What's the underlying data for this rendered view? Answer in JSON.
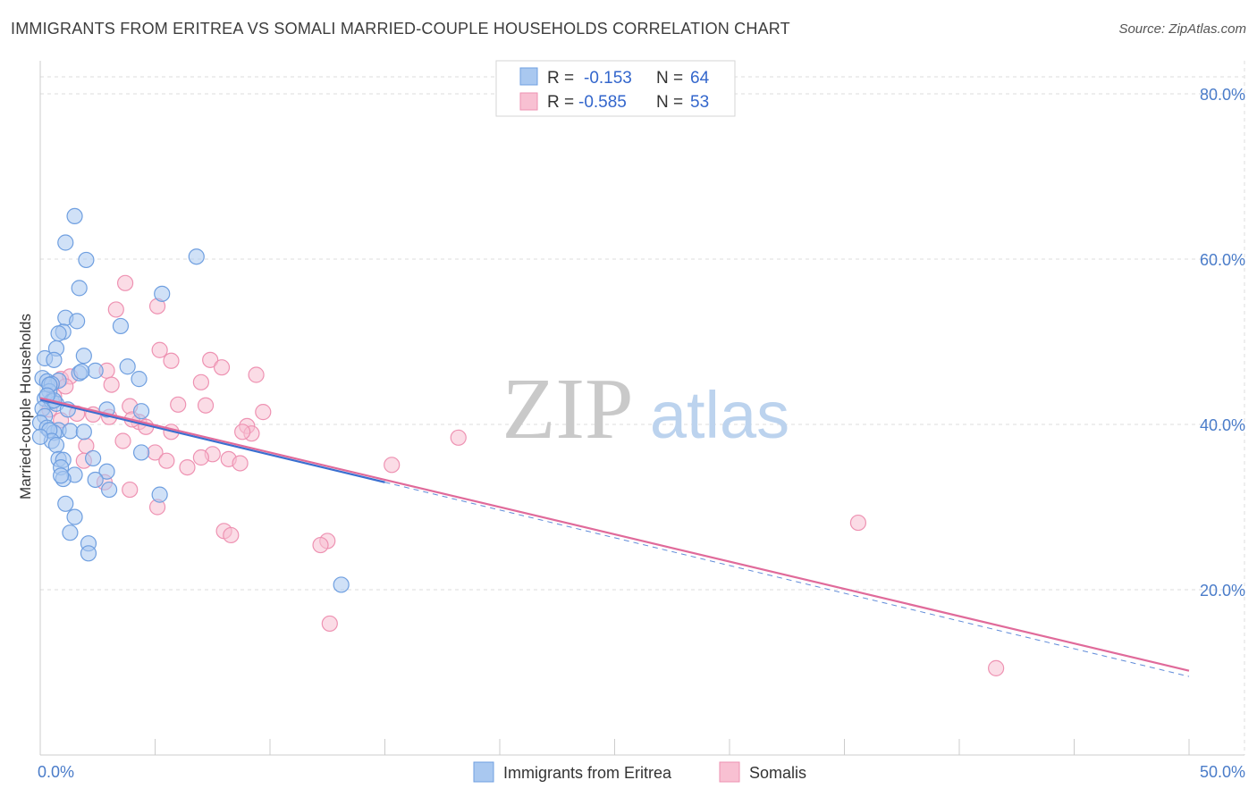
{
  "header": {
    "title": "IMMIGRANTS FROM ERITREA VS SOMALI MARRIED-COUPLE HOUSEHOLDS CORRELATION CHART",
    "source": "Source: ZipAtlas.com"
  },
  "watermark": {
    "zip": "ZIP",
    "atlas": "atlas"
  },
  "legend": {
    "r_label": "R =",
    "n_label": "N =",
    "entries": [
      {
        "r": "-0.153",
        "n": "64"
      },
      {
        "r": "-0.585",
        "n": "53"
      }
    ]
  },
  "chart_data": {
    "type": "scatter",
    "title": "IMMIGRANTS FROM ERITREA VS SOMALI MARRIED-COUPLE HOUSEHOLDS CORRELATION CHART",
    "xlabel": "",
    "ylabel": "Married-couple Households",
    "xlim": [
      0,
      50
    ],
    "ylim": [
      0,
      84
    ],
    "x_tick_labels": [
      {
        "value": 0,
        "label": "0.0%"
      },
      {
        "value": 50,
        "label": "50.0%"
      }
    ],
    "y_tick_labels": [
      {
        "value": 20,
        "label": "20.0%"
      },
      {
        "value": 40,
        "label": "40.0%"
      },
      {
        "value": 60,
        "label": "60.0%"
      },
      {
        "value": 80,
        "label": "80.0%"
      }
    ],
    "grid": true,
    "legend_position": "top-center",
    "colors": {
      "eritrea_fill": "#a9c8f0",
      "eritrea_stroke": "#6f9fe0",
      "eritrea_line": "#3a6fd0",
      "somali_fill": "#f8c0d2",
      "somali_stroke": "#ee92b2",
      "somali_line": "#e06a9a",
      "grid": "#dddddd",
      "axis": "#cccccc",
      "watermark_zip": "#c9c9c9",
      "watermark_atlas": "#bcd3ee"
    },
    "series": [
      {
        "name": "Immigrants from Eritrea",
        "trend": {
          "x": [
            0,
            15
          ],
          "y": [
            43.0,
            33.0
          ],
          "dashed_extension_to_x": 50,
          "dashed_end_y": 9.5
        },
        "points": [
          [
            1.5,
            65.2
          ],
          [
            1.1,
            62.0
          ],
          [
            2.0,
            59.9
          ],
          [
            6.8,
            60.3
          ],
          [
            1.7,
            56.5
          ],
          [
            5.3,
            55.8
          ],
          [
            1.1,
            52.9
          ],
          [
            1.6,
            52.5
          ],
          [
            3.5,
            51.9
          ],
          [
            1.0,
            51.2
          ],
          [
            0.8,
            51.0
          ],
          [
            0.7,
            49.2
          ],
          [
            1.9,
            48.3
          ],
          [
            0.2,
            48.0
          ],
          [
            0.6,
            47.8
          ],
          [
            3.8,
            47.0
          ],
          [
            2.4,
            46.5
          ],
          [
            1.7,
            46.2
          ],
          [
            0.1,
            45.6
          ],
          [
            0.3,
            45.2
          ],
          [
            4.3,
            45.5
          ],
          [
            0.8,
            45.3
          ],
          [
            0.5,
            44.9
          ],
          [
            0.4,
            44.0
          ],
          [
            0.2,
            43.1
          ],
          [
            0.5,
            42.8
          ],
          [
            0.7,
            42.5
          ],
          [
            0.1,
            41.9
          ],
          [
            1.2,
            41.8
          ],
          [
            2.9,
            41.8
          ],
          [
            4.4,
            41.6
          ],
          [
            0.2,
            41.0
          ],
          [
            0.0,
            40.2
          ],
          [
            0.3,
            39.6
          ],
          [
            0.8,
            39.3
          ],
          [
            1.3,
            39.2
          ],
          [
            1.9,
            39.1
          ],
          [
            0.6,
            39.0
          ],
          [
            0.4,
            39.3
          ],
          [
            0.5,
            38.0
          ],
          [
            0.0,
            38.5
          ],
          [
            0.7,
            37.5
          ],
          [
            0.8,
            35.8
          ],
          [
            1.0,
            35.7
          ],
          [
            2.3,
            35.9
          ],
          [
            4.4,
            36.6
          ],
          [
            0.9,
            34.8
          ],
          [
            2.9,
            34.3
          ],
          [
            1.5,
            33.9
          ],
          [
            1.0,
            33.4
          ],
          [
            2.4,
            33.3
          ],
          [
            0.9,
            33.8
          ],
          [
            3.0,
            32.1
          ],
          [
            5.2,
            31.5
          ],
          [
            1.1,
            30.4
          ],
          [
            1.5,
            28.8
          ],
          [
            1.3,
            26.9
          ],
          [
            2.1,
            25.6
          ],
          [
            2.1,
            24.4
          ],
          [
            13.1,
            20.6
          ],
          [
            0.4,
            44.8
          ],
          [
            0.6,
            42.9
          ],
          [
            1.8,
            46.4
          ],
          [
            0.3,
            43.5
          ]
        ]
      },
      {
        "name": "Somalis",
        "trend": {
          "x": [
            0,
            50
          ],
          "y": [
            43.2,
            10.2
          ]
        },
        "points": [
          [
            3.7,
            57.1
          ],
          [
            5.1,
            54.3
          ],
          [
            3.3,
            53.9
          ],
          [
            5.2,
            49.0
          ],
          [
            5.7,
            47.7
          ],
          [
            7.4,
            47.8
          ],
          [
            7.9,
            46.9
          ],
          [
            2.9,
            46.5
          ],
          [
            9.4,
            46.0
          ],
          [
            0.9,
            45.5
          ],
          [
            1.3,
            45.8
          ],
          [
            3.1,
            44.8
          ],
          [
            7.0,
            45.1
          ],
          [
            1.1,
            44.6
          ],
          [
            6.0,
            42.4
          ],
          [
            7.2,
            42.3
          ],
          [
            3.9,
            42.2
          ],
          [
            9.7,
            41.5
          ],
          [
            1.6,
            41.3
          ],
          [
            2.3,
            41.2
          ],
          [
            3.0,
            40.9
          ],
          [
            0.9,
            40.5
          ],
          [
            4.3,
            40.3
          ],
          [
            4.6,
            39.7
          ],
          [
            5.7,
            39.1
          ],
          [
            9.0,
            39.8
          ],
          [
            9.2,
            38.9
          ],
          [
            0.4,
            41.8
          ],
          [
            18.2,
            38.4
          ],
          [
            3.6,
            38.0
          ],
          [
            2.0,
            37.4
          ],
          [
            5.0,
            36.6
          ],
          [
            7.5,
            36.4
          ],
          [
            7.0,
            36.0
          ],
          [
            8.2,
            35.8
          ],
          [
            5.5,
            35.6
          ],
          [
            8.7,
            35.3
          ],
          [
            15.3,
            35.1
          ],
          [
            2.8,
            33.0
          ],
          [
            3.9,
            32.1
          ],
          [
            6.4,
            34.8
          ],
          [
            5.1,
            30.0
          ],
          [
            8.0,
            27.1
          ],
          [
            8.3,
            26.6
          ],
          [
            12.5,
            25.9
          ],
          [
            12.2,
            25.4
          ],
          [
            35.6,
            28.1
          ],
          [
            12.6,
            15.9
          ],
          [
            41.6,
            10.5
          ],
          [
            1.9,
            35.6
          ],
          [
            0.6,
            43.4
          ],
          [
            4.0,
            40.6
          ],
          [
            8.8,
            39.1
          ]
        ]
      }
    ]
  },
  "bottom_legend": {
    "items": [
      {
        "label": "Immigrants from Eritrea"
      },
      {
        "label": "Somalis"
      }
    ]
  }
}
